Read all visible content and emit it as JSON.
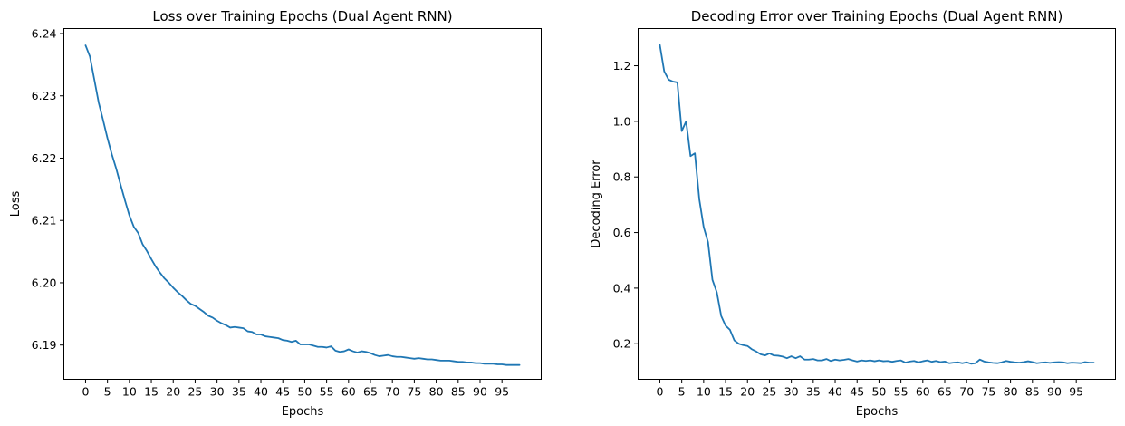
{
  "chart_data": [
    {
      "type": "line",
      "title": "Loss over Training Epochs (Dual Agent RNN)",
      "xlabel": "Epochs",
      "ylabel": "Loss",
      "xticks": [
        0,
        5,
        10,
        15,
        20,
        25,
        30,
        35,
        40,
        45,
        50,
        55,
        60,
        65,
        70,
        75,
        80,
        85,
        90,
        95
      ],
      "yticks": [
        6.19,
        6.2,
        6.21,
        6.22,
        6.23,
        6.24
      ],
      "ytick_labels": [
        "6.19",
        "6.20",
        "6.21",
        "6.22",
        "6.23",
        "6.24"
      ],
      "xlim": [
        -4.95,
        103.95
      ],
      "ylim": [
        6.1845,
        6.2408
      ],
      "grid": false,
      "color": "#1f77b4",
      "series": [
        {
          "x": [
            0,
            1,
            2,
            3,
            4,
            5,
            6,
            7,
            8,
            9,
            10,
            11,
            12,
            13,
            14,
            15,
            16,
            17,
            18,
            19,
            20,
            21,
            22,
            23,
            24,
            25,
            26,
            27,
            28,
            29,
            30,
            31,
            32,
            33,
            34,
            35,
            36,
            37,
            38,
            39,
            40,
            41,
            42,
            43,
            44,
            45,
            46,
            47,
            48,
            49,
            50,
            51,
            52,
            53,
            54,
            55,
            56,
            57,
            58,
            59,
            60,
            61,
            62,
            63,
            64,
            65,
            66,
            67,
            68,
            69,
            70,
            71,
            72,
            73,
            74,
            75,
            76,
            77,
            78,
            79,
            80,
            81,
            82,
            83,
            84,
            85,
            86,
            87,
            88,
            89,
            90,
            91,
            92,
            93,
            94,
            95,
            96,
            97,
            98,
            99
          ],
          "values": [
            6.2381,
            6.2363,
            6.2326,
            6.2289,
            6.2261,
            6.2232,
            6.2206,
            6.2183,
            6.2157,
            6.2132,
            6.2108,
            6.209,
            6.208,
            6.2062,
            6.2051,
            6.2038,
            6.2026,
            6.2016,
            6.2007,
            6.2,
            6.1992,
            6.1985,
            6.1979,
            6.1972,
            6.1966,
            6.1963,
            6.1958,
            6.1953,
            6.1947,
            6.1944,
            6.1939,
            6.1935,
            6.1932,
            6.1928,
            6.1929,
            6.1928,
            6.1927,
            6.1922,
            6.1921,
            6.1917,
            6.1917,
            6.1914,
            6.1913,
            6.1912,
            6.1911,
            6.1908,
            6.1907,
            6.1905,
            6.1907,
            6.1901,
            6.1901,
            6.1901,
            6.1899,
            6.1897,
            6.1897,
            6.1896,
            6.1898,
            6.1891,
            6.1889,
            6.189,
            6.1893,
            6.189,
            6.1888,
            6.189,
            6.1889,
            6.1887,
            6.1884,
            6.1882,
            6.1883,
            6.1884,
            6.1882,
            6.1881,
            6.1881,
            6.188,
            6.1879,
            6.1878,
            6.1879,
            6.1878,
            6.1877,
            6.1877,
            6.1876,
            6.1875,
            6.1875,
            6.1875,
            6.1874,
            6.1873,
            6.1873,
            6.1872,
            6.1872,
            6.1871,
            6.1871,
            6.187,
            6.187,
            6.187,
            6.1869,
            6.1869,
            6.1868,
            6.1868,
            6.1868,
            6.1868
          ]
        }
      ]
    },
    {
      "type": "line",
      "title": "Decoding Error over Training Epochs (Dual Agent RNN)",
      "xlabel": "Epochs",
      "ylabel": "Decoding Error",
      "xticks": [
        0,
        5,
        10,
        15,
        20,
        25,
        30,
        35,
        40,
        45,
        50,
        55,
        60,
        65,
        70,
        75,
        80,
        85,
        90,
        95
      ],
      "yticks": [
        0.2,
        0.4,
        0.6,
        0.8,
        1.0,
        1.2
      ],
      "ytick_labels": [
        "0.2",
        "0.4",
        "0.6",
        "0.8",
        "1.0",
        "1.2"
      ],
      "xlim": [
        -4.95,
        103.95
      ],
      "ylim": [
        0.072,
        1.3338
      ],
      "grid": false,
      "color": "#1f77b4",
      "series": [
        {
          "x": [
            0,
            1,
            2,
            3,
            4,
            5,
            6,
            7,
            8,
            9,
            10,
            11,
            12,
            13,
            14,
            15,
            16,
            17,
            18,
            19,
            20,
            21,
            22,
            23,
            24,
            25,
            26,
            27,
            28,
            29,
            30,
            31,
            32,
            33,
            34,
            35,
            36,
            37,
            38,
            39,
            40,
            41,
            42,
            43,
            44,
            45,
            46,
            47,
            48,
            49,
            50,
            51,
            52,
            53,
            54,
            55,
            56,
            57,
            58,
            59,
            60,
            61,
            62,
            63,
            64,
            65,
            66,
            67,
            68,
            69,
            70,
            71,
            72,
            73,
            74,
            75,
            76,
            77,
            78,
            79,
            80,
            81,
            82,
            83,
            84,
            85,
            86,
            87,
            88,
            89,
            90,
            91,
            92,
            93,
            94,
            95,
            96,
            97,
            98,
            99
          ],
          "values": [
            1.275,
            1.18,
            1.15,
            1.143,
            1.14,
            0.965,
            1.0,
            0.875,
            0.885,
            0.72,
            0.62,
            0.565,
            0.43,
            0.385,
            0.3,
            0.265,
            0.25,
            0.212,
            0.2,
            0.195,
            0.192,
            0.18,
            0.172,
            0.162,
            0.158,
            0.165,
            0.158,
            0.157,
            0.154,
            0.148,
            0.155,
            0.148,
            0.155,
            0.143,
            0.143,
            0.145,
            0.14,
            0.14,
            0.145,
            0.138,
            0.143,
            0.14,
            0.142,
            0.145,
            0.14,
            0.136,
            0.14,
            0.138,
            0.14,
            0.137,
            0.14,
            0.137,
            0.138,
            0.135,
            0.138,
            0.14,
            0.132,
            0.136,
            0.138,
            0.133,
            0.137,
            0.14,
            0.135,
            0.138,
            0.134,
            0.136,
            0.13,
            0.132,
            0.133,
            0.13,
            0.133,
            0.128,
            0.13,
            0.143,
            0.136,
            0.133,
            0.131,
            0.13,
            0.133,
            0.138,
            0.135,
            0.133,
            0.132,
            0.134,
            0.137,
            0.134,
            0.13,
            0.132,
            0.133,
            0.131,
            0.133,
            0.134,
            0.133,
            0.13,
            0.132,
            0.131,
            0.13,
            0.134,
            0.132,
            0.132
          ]
        }
      ]
    }
  ]
}
